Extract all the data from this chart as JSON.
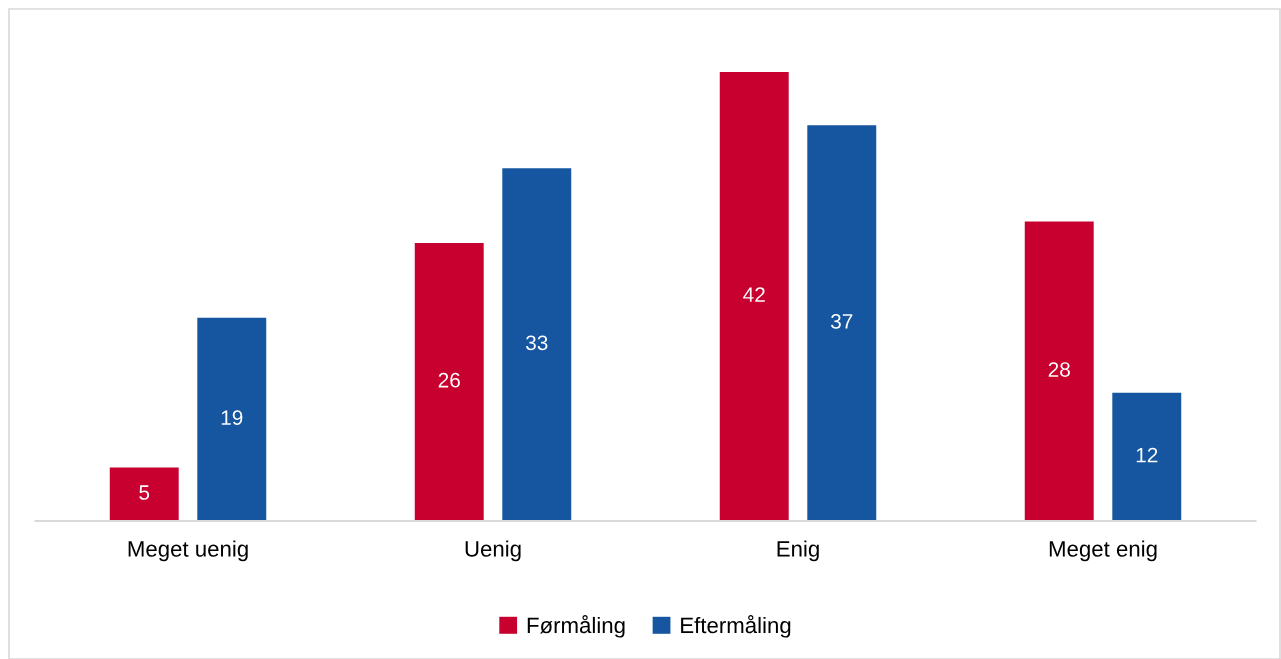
{
  "chart_data": {
    "type": "bar",
    "categories": [
      "Meget uenig",
      "Uenig",
      "Enig",
      "Meget enig"
    ],
    "series": [
      {
        "name": "Førmåling",
        "color": "#c8002f",
        "values": [
          5,
          26,
          42,
          28
        ]
      },
      {
        "name": "Eftermåling",
        "color": "#1656a0",
        "values": [
          19,
          33,
          37,
          12
        ]
      }
    ],
    "data_labels": true,
    "legend": "bottom",
    "grid": false
  }
}
